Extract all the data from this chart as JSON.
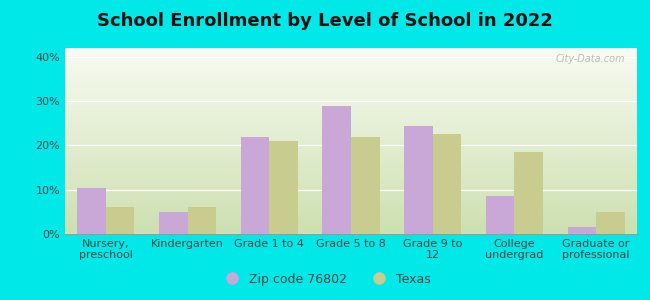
{
  "title": "School Enrollment by Level of School in 2022",
  "categories": [
    "Nursery,\npreschool",
    "Kindergarten",
    "Grade 1 to 4",
    "Grade 5 to 8",
    "Grade 9 to\n12",
    "College\nundergrad",
    "Graduate or\nprofessional"
  ],
  "zip_values": [
    10.5,
    5.0,
    22.0,
    29.0,
    24.5,
    8.5,
    1.5
  ],
  "texas_values": [
    6.0,
    6.0,
    21.0,
    22.0,
    22.5,
    18.5,
    5.0
  ],
  "zip_color": "#c9a8d8",
  "texas_color": "#c8cc8e",
  "background_outer": "#00e8e8",
  "ylim": [
    0,
    42
  ],
  "yticks": [
    0,
    10,
    20,
    30,
    40
  ],
  "ytick_labels": [
    "0%",
    "10%",
    "20%",
    "30%",
    "40%"
  ],
  "zip_label": "Zip code 76802",
  "texas_label": "Texas",
  "bar_width": 0.35,
  "title_fontsize": 13,
  "tick_fontsize": 8,
  "legend_fontsize": 9,
  "watermark": "City-Data.com",
  "grad_top": "#f0f5ea",
  "grad_bottom": "#d8e8c0"
}
